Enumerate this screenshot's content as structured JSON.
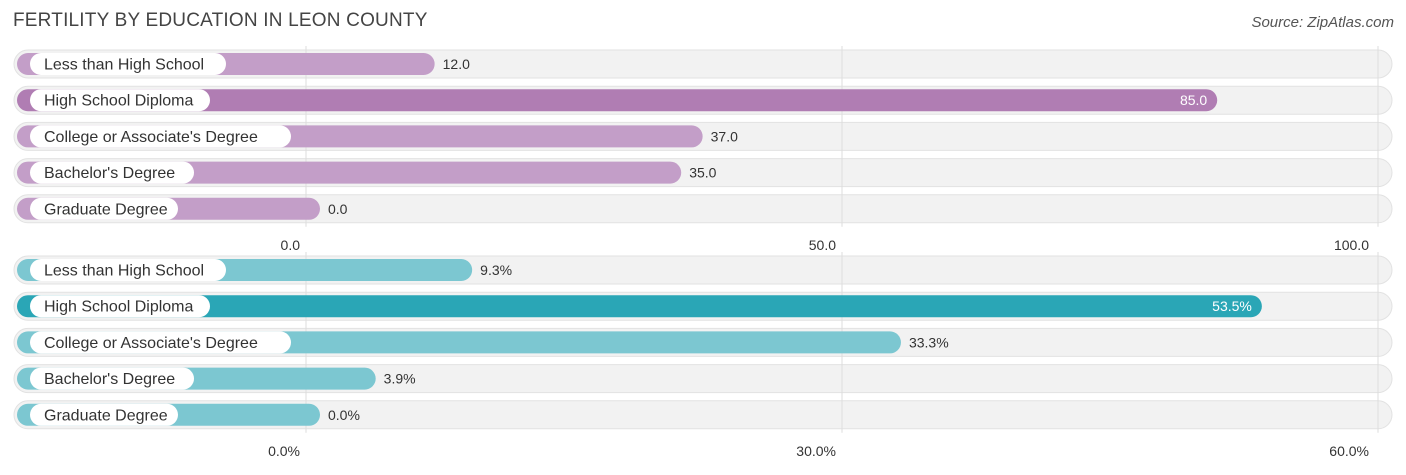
{
  "title": "FERTILITY BY EDUCATION IN LEON COUNTY",
  "source": "Source: ZipAtlas.com",
  "chart_data": [
    {
      "type": "bar",
      "orientation": "horizontal",
      "categories": [
        "Less than High School",
        "High School Diploma",
        "College or Associate's Degree",
        "Bachelor's Degree",
        "Graduate Degree"
      ],
      "values": [
        12.0,
        85.0,
        37.0,
        35.0,
        0.0
      ],
      "value_labels": [
        "12.0",
        "85.0",
        "37.0",
        "35.0",
        "0.0"
      ],
      "xlim": [
        0,
        100
      ],
      "ticks": [
        "0.0",
        "50.0",
        "100.0"
      ],
      "color": "#c39ec8",
      "highlight_color": "#b07db3",
      "grid": true
    },
    {
      "type": "bar",
      "orientation": "horizontal",
      "categories": [
        "Less than High School",
        "High School Diploma",
        "College or Associate's Degree",
        "Bachelor's Degree",
        "Graduate Degree"
      ],
      "values": [
        9.3,
        53.5,
        33.3,
        3.9,
        0.0
      ],
      "value_labels": [
        "9.3%",
        "53.5%",
        "33.3%",
        "3.9%",
        "0.0%"
      ],
      "xlim": [
        0,
        60
      ],
      "ticks": [
        "0.0%",
        "30.0%",
        "60.0%"
      ],
      "color": "#7cc7d1",
      "highlight_color": "#2aa6b6",
      "grid": true
    }
  ]
}
